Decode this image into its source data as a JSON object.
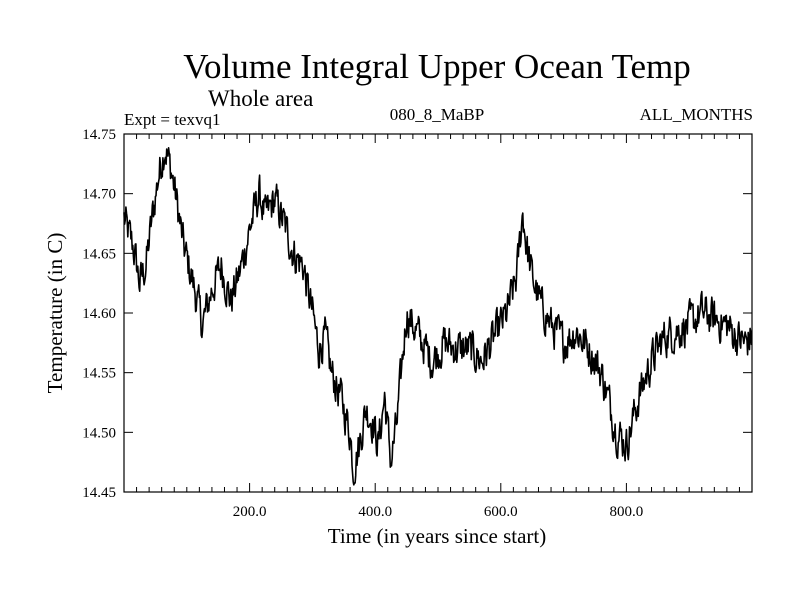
{
  "chart_data": {
    "type": "line",
    "title": "Volume Integral Upper Ocean Temp",
    "subtitle": "Whole area",
    "annotations": {
      "experiment": "Expt = texvq1",
      "run": "080_8_MaBP",
      "months": "ALL_MONTHS"
    },
    "xlabel": "Time (in years since start)",
    "ylabel": "Temperature (in C)",
    "xlim": [
      0,
      1000
    ],
    "ylim": [
      14.45,
      14.75
    ],
    "x_ticks": [
      200,
      400,
      600,
      800
    ],
    "x_tick_labels": [
      "200.0",
      "400.0",
      "600.0",
      "800.0"
    ],
    "y_ticks": [
      14.45,
      14.5,
      14.55,
      14.6,
      14.65,
      14.7,
      14.75
    ],
    "y_tick_labels": [
      "14.45",
      "14.50",
      "14.55",
      "14.60",
      "14.65",
      "14.70",
      "14.75"
    ],
    "grid": false,
    "series_anchors": {
      "name": "Volume integral upper ocean temperature",
      "x": [
        0,
        5,
        15,
        25,
        35,
        45,
        55,
        65,
        75,
        85,
        95,
        110,
        125,
        140,
        155,
        170,
        185,
        200,
        215,
        225,
        240,
        255,
        270,
        285,
        300,
        310,
        320,
        330,
        345,
        360,
        365,
        375,
        385,
        395,
        405,
        415,
        425,
        435,
        450,
        470,
        490,
        510,
        530,
        550,
        570,
        590,
        610,
        625,
        635,
        640,
        650,
        665,
        680,
        700,
        720,
        740,
        760,
        775,
        785,
        800,
        820,
        840,
        860,
        880,
        900,
        920,
        940,
        960,
        975,
        990,
        1000
      ],
      "y": [
        14.68,
        14.67,
        14.655,
        14.625,
        14.64,
        14.68,
        14.715,
        14.74,
        14.72,
        14.69,
        14.655,
        14.625,
        14.59,
        14.62,
        14.64,
        14.61,
        14.635,
        14.67,
        14.7,
        14.68,
        14.695,
        14.675,
        14.65,
        14.64,
        14.6,
        14.57,
        14.58,
        14.55,
        14.53,
        14.5,
        14.47,
        14.49,
        14.52,
        14.51,
        14.49,
        14.53,
        14.475,
        14.51,
        14.6,
        14.58,
        14.56,
        14.575,
        14.57,
        14.57,
        14.56,
        14.58,
        14.6,
        14.63,
        14.685,
        14.66,
        14.63,
        14.605,
        14.59,
        14.575,
        14.585,
        14.57,
        14.55,
        14.52,
        14.5,
        14.49,
        14.53,
        14.56,
        14.58,
        14.585,
        14.59,
        14.6,
        14.595,
        14.59,
        14.58,
        14.575,
        14.58
      ]
    }
  }
}
